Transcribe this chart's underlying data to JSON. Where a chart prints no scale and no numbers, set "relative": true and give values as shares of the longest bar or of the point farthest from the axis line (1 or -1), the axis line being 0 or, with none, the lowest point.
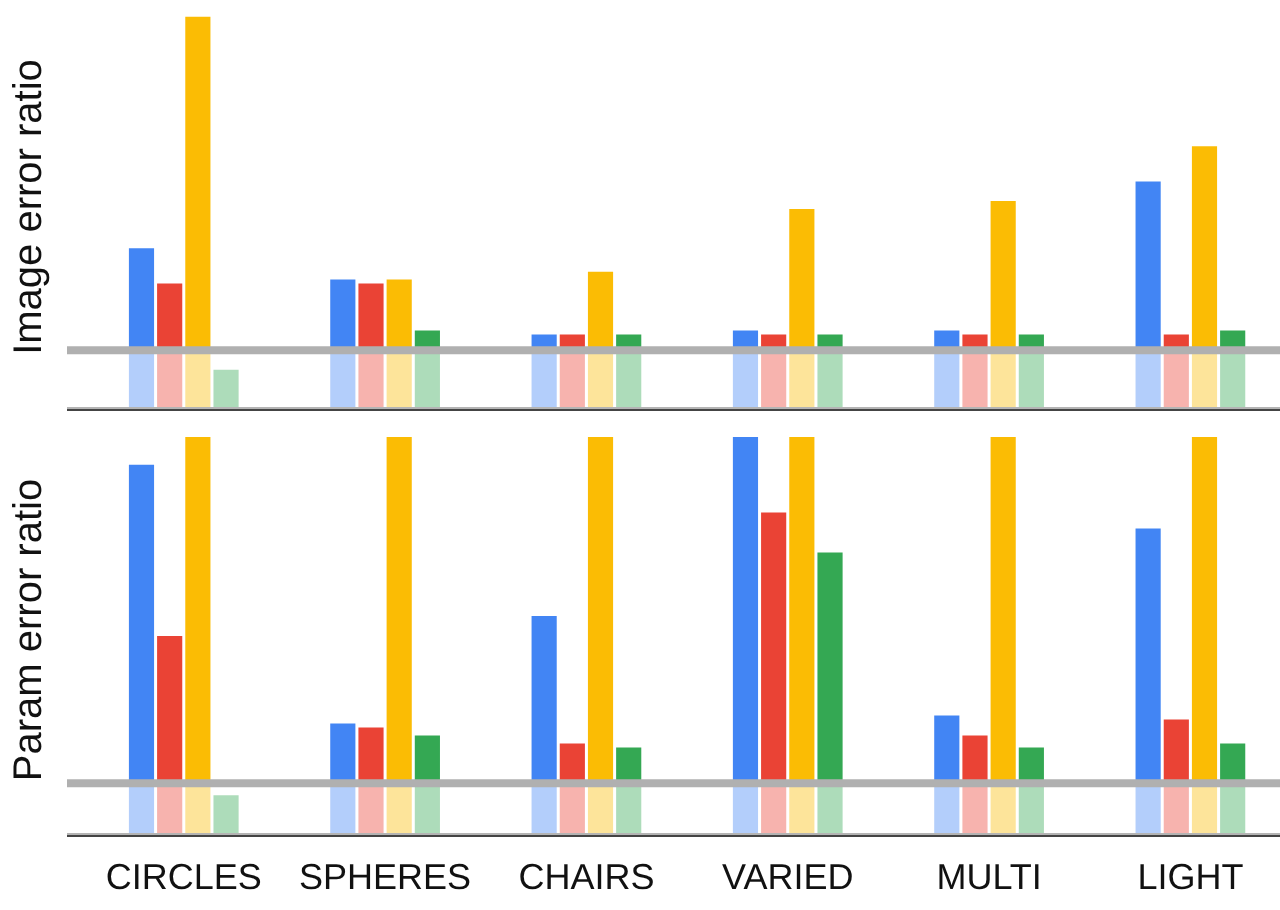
{
  "chart_data": [
    {
      "type": "bar",
      "relative": true,
      "ylabel": "Image error ratio",
      "tick_labels": false,
      "categories": [
        null,
        null,
        null,
        null,
        null,
        null
      ],
      "series": [
        {
          "color": "#4285f4",
          "values": [
            0.41,
            0.33,
            0.19,
            0.2,
            0.2,
            0.58
          ]
        },
        {
          "color": "#ea4335",
          "values": [
            0.32,
            0.32,
            0.19,
            0.19,
            0.19,
            0.19
          ]
        },
        {
          "color": "#fbbc04",
          "values": [
            1,
            0.33,
            0.35,
            0.51,
            0.53,
            0.67
          ]
        },
        {
          "color": "#34a853",
          "values": [
            0.1,
            0.2,
            0.19,
            0.19,
            0.19,
            0.2
          ]
        }
      ],
      "ref_lines": [
        {
          "axis": "y",
          "value": 0.15,
          "color": "#b0b0b0"
        }
      ],
      "bands": [
        {
          "axis": "y",
          "from": 0,
          "to": 0.15,
          "color": "#ffffff"
        }
      ]
    },
    {
      "type": "bar",
      "relative": true,
      "ylabel": "Param error ratio",
      "categories": [
        "CIRCLES",
        "SPHERES",
        "CHAIRS",
        "VARIED",
        "MULTI",
        "LIGHT"
      ],
      "series": [
        {
          "color": "#4285f4",
          "values": [
            0.93,
            0.28,
            0.55,
            1,
            0.3,
            0.77
          ]
        },
        {
          "color": "#ea4335",
          "values": [
            0.5,
            0.27,
            0.23,
            0.81,
            0.25,
            0.29
          ]
        },
        {
          "color": "#fbbc04",
          "values": [
            1,
            1,
            1,
            1,
            1,
            1
          ]
        },
        {
          "color": "#34a853",
          "values": [
            0.1,
            0.25,
            0.22,
            0.71,
            0.22,
            0.23
          ]
        }
      ],
      "ref_lines": [
        {
          "axis": "y",
          "value": 0.13,
          "color": "#b0b0b0"
        }
      ],
      "bands": [
        {
          "axis": "y",
          "from": 0,
          "to": 0.13,
          "color": "#ffffff"
        }
      ]
    }
  ]
}
